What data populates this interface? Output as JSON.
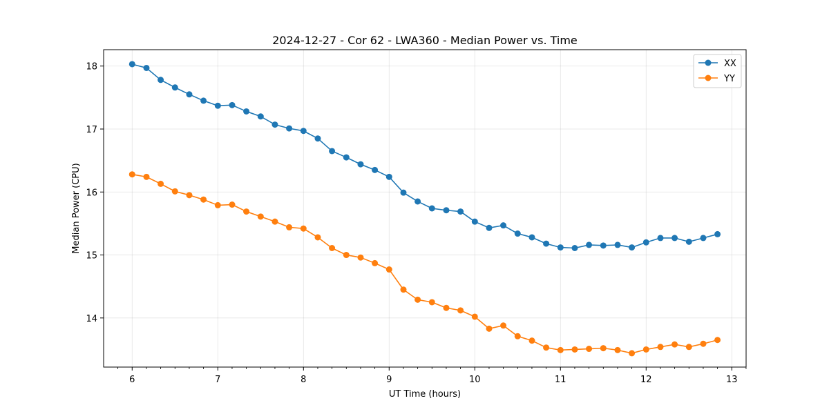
{
  "chart_data": {
    "type": "line",
    "title": "2024-12-27 - Cor 62 - LWA360 - Median Power vs. Time",
    "xlabel": "UT Time (hours)",
    "ylabel": "Median Power (CPU)",
    "xlim": [
      5.667,
      13.167
    ],
    "ylim": [
      13.22,
      18.26
    ],
    "xticks": [
      6,
      7,
      8,
      9,
      10,
      11,
      12,
      13
    ],
    "yticks": [
      14,
      15,
      16,
      17,
      18
    ],
    "xtick_labels": [
      "6",
      "7",
      "8",
      "9",
      "10",
      "11",
      "12",
      "13"
    ],
    "ytick_labels": [
      "14",
      "15",
      "16",
      "17",
      "18"
    ],
    "grid": true,
    "legend_position": "top-right",
    "x": [
      6.0,
      6.167,
      6.333,
      6.5,
      6.667,
      6.833,
      7.0,
      7.167,
      7.333,
      7.5,
      7.667,
      7.833,
      8.0,
      8.167,
      8.333,
      8.5,
      8.667,
      8.833,
      9.0,
      9.167,
      9.333,
      9.5,
      9.667,
      9.833,
      10.0,
      10.167,
      10.333,
      10.5,
      10.667,
      10.833,
      11.0,
      11.167,
      11.333,
      11.5,
      11.667,
      11.833,
      12.0,
      12.167,
      12.333,
      12.5,
      12.667,
      12.833
    ],
    "series": [
      {
        "name": "XX",
        "color": "#1f77b4",
        "values": [
          18.03,
          17.97,
          17.78,
          17.66,
          17.55,
          17.45,
          17.37,
          17.38,
          17.28,
          17.2,
          17.07,
          17.01,
          16.97,
          16.85,
          16.65,
          16.55,
          16.44,
          16.35,
          16.24,
          15.99,
          15.85,
          15.74,
          15.71,
          15.69,
          15.53,
          15.43,
          15.47,
          15.34,
          15.28,
          15.18,
          15.12,
          15.11,
          15.16,
          15.15,
          15.16,
          15.12,
          15.2,
          15.27,
          15.27,
          15.21,
          15.27,
          15.33
        ]
      },
      {
        "name": "YY",
        "color": "#ff7f0e",
        "values": [
          16.28,
          16.24,
          16.13,
          16.01,
          15.95,
          15.88,
          15.79,
          15.8,
          15.69,
          15.61,
          15.53,
          15.44,
          15.42,
          15.28,
          15.11,
          15.0,
          14.96,
          14.87,
          14.77,
          14.45,
          14.29,
          14.25,
          14.16,
          14.12,
          14.02,
          13.83,
          13.88,
          13.71,
          13.64,
          13.53,
          13.49,
          13.5,
          13.51,
          13.52,
          13.49,
          13.44,
          13.5,
          13.54,
          13.58,
          13.54,
          13.59,
          13.65
        ]
      }
    ]
  }
}
